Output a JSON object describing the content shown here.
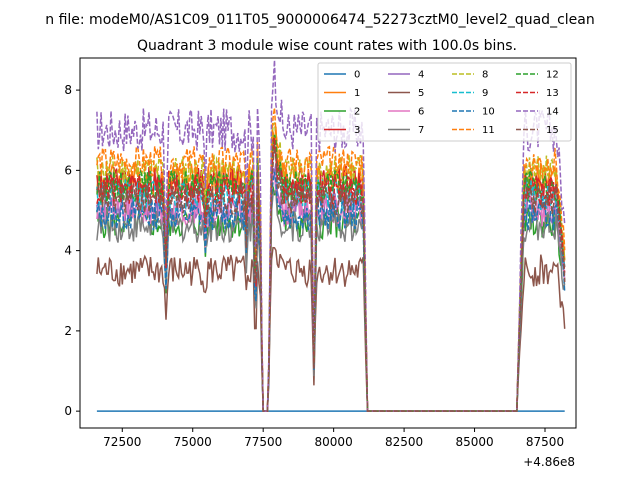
{
  "figure": {
    "suptitle": "n file: modeM0/AS1C09_011T05_9000006474_52273cztM0_level2_quad_clean",
    "title": "Quadrant 3 module wise count rates with 100.0s bins.",
    "offset_label": "+4.86e8"
  },
  "chart_data": {
    "type": "line",
    "xlim": [
      71000,
      88600
    ],
    "ylim": [
      -0.42,
      8.8
    ],
    "x_ticks": [
      72500,
      75000,
      77500,
      80000,
      82500,
      85000,
      87500
    ],
    "x_tick_labels": [
      "72500",
      "75000",
      "77500",
      "80000",
      "82500",
      "85000",
      "87500"
    ],
    "y_ticks": [
      0,
      2,
      4,
      6,
      8
    ],
    "y_tick_labels": [
      "0",
      "2",
      "4",
      "6",
      "8"
    ],
    "grid": false,
    "legend_placement": "top-right",
    "segments_note_x_ranges": [
      [
        71600,
        77400
      ],
      [
        77800,
        81200
      ],
      [
        86500,
        88200
      ]
    ],
    "series": [
      {
        "name": "0",
        "color": "#1f77b4",
        "dash": "solid",
        "level": 0.0
      },
      {
        "name": "1",
        "color": "#ff7f0e",
        "dash": "solid",
        "level": 5.8
      },
      {
        "name": "2",
        "color": "#2ca02c",
        "dash": "solid",
        "level": 4.7
      },
      {
        "name": "3",
        "color": "#d62728",
        "dash": "solid",
        "level": 5.7
      },
      {
        "name": "4",
        "color": "#9467bd",
        "dash": "solid",
        "level": 5.1
      },
      {
        "name": "5",
        "color": "#8c564b",
        "dash": "solid",
        "level": 3.5
      },
      {
        "name": "6",
        "color": "#e377c2",
        "dash": "solid",
        "level": 5.0
      },
      {
        "name": "7",
        "color": "#7f7f7f",
        "dash": "solid",
        "level": 4.6
      },
      {
        "name": "8",
        "color": "#bcbd22",
        "dash": "dashed",
        "level": 6.0
      },
      {
        "name": "9",
        "color": "#17becf",
        "dash": "dashed",
        "level": 5.4
      },
      {
        "name": "10",
        "color": "#1f77b4",
        "dash": "dashed",
        "level": 4.9
      },
      {
        "name": "11",
        "color": "#ff7f0e",
        "dash": "dashed",
        "level": 6.2
      },
      {
        "name": "12",
        "color": "#2ca02c",
        "dash": "dashed",
        "level": 5.6
      },
      {
        "name": "13",
        "color": "#d62728",
        "dash": "dashed",
        "level": 5.5
      },
      {
        "name": "14",
        "color": "#9467bd",
        "dash": "dashed",
        "level": 7.0
      },
      {
        "name": "15",
        "color": "#8c564b",
        "dash": "dashed",
        "level": 5.3
      }
    ]
  }
}
